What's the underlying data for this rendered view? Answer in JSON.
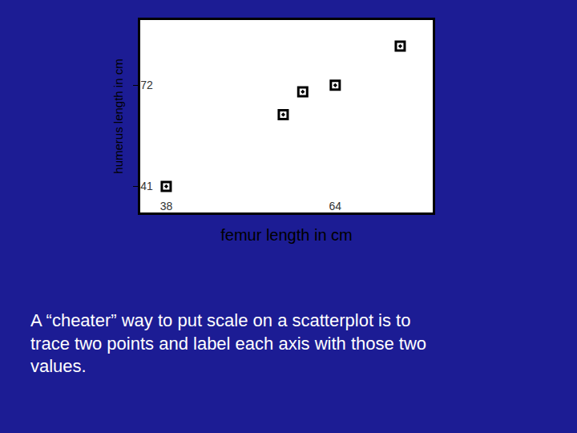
{
  "chart_data": {
    "type": "scatter",
    "x_label": "femur length in cm",
    "y_label": "humerus length in cm",
    "x": [
      38,
      56,
      59,
      64,
      74
    ],
    "values": [
      41,
      63,
      70,
      72,
      84
    ],
    "color": "#000000",
    "marker": "square-open-dot",
    "xlim": [
      34,
      79
    ],
    "xticks": [
      38,
      64
    ],
    "ylim": [
      33,
      92
    ],
    "yticks": [
      41,
      72
    ],
    "grid": false,
    "caption": [
      "A “cheater” way to put scale on a scatterplot is to",
      "trace two points and label each axis with those two",
      "values."
    ]
  }
}
